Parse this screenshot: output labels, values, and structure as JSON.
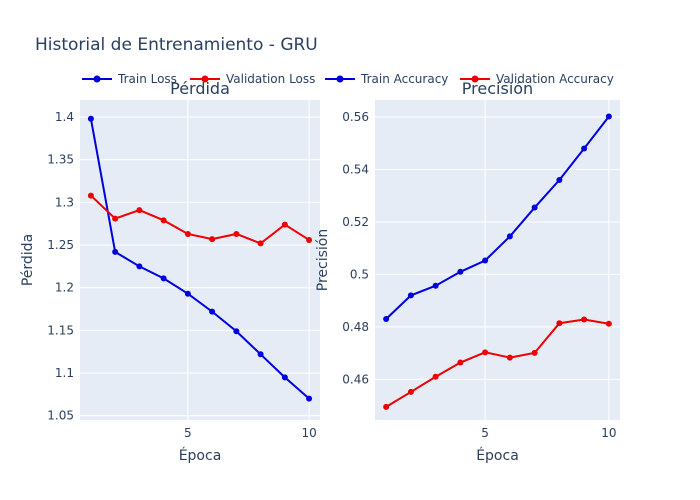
{
  "title": "Historial de Entrenamiento - GRU",
  "legend": [
    "Train Loss",
    "Validation Loss",
    "Train Accuracy",
    "Validation Accuracy"
  ],
  "colors": {
    "train": "#0000dd",
    "validation": "#ee0000",
    "plot_bg": "#e5ecf6",
    "grid": "#ffffff",
    "text": "#2a3f5f"
  },
  "chart_data": [
    {
      "type": "line",
      "title": "Pérdida",
      "xlabel": "Época",
      "ylabel": "Pérdida",
      "x": [
        1,
        2,
        3,
        4,
        5,
        6,
        7,
        8,
        9,
        10
      ],
      "xticks": [
        5,
        10
      ],
      "yticks": [
        1.05,
        1.1,
        1.15,
        1.2,
        1.25,
        1.3,
        1.35,
        1.4
      ],
      "ytick_labels": [
        "1.05",
        "1.1",
        "1.15",
        "1.2",
        "1.25",
        "1.3",
        "1.35",
        "1.4"
      ],
      "xlim": [
        0.55,
        10.45
      ],
      "ylim": [
        1.045,
        1.42
      ],
      "grid": true,
      "series": [
        {
          "name": "Train Loss",
          "color": "#0000dd",
          "values": [
            1.398,
            1.242,
            1.225,
            1.211,
            1.193,
            1.172,
            1.149,
            1.122,
            1.095,
            1.07
          ]
        },
        {
          "name": "Validation Loss",
          "color": "#ee0000",
          "values": [
            1.308,
            1.281,
            1.291,
            1.279,
            1.263,
            1.257,
            1.263,
            1.252,
            1.274,
            1.256
          ]
        }
      ]
    },
    {
      "type": "line",
      "title": "Precisión",
      "xlabel": "Época",
      "ylabel": "Precisión",
      "x": [
        1,
        2,
        3,
        4,
        5,
        6,
        7,
        8,
        9,
        10
      ],
      "xticks": [
        5,
        10
      ],
      "yticks": [
        0.46,
        0.48,
        0.5,
        0.52,
        0.54,
        0.56
      ],
      "ytick_labels": [
        "0.46",
        "0.48",
        "0.5",
        "0.52",
        "0.54",
        "0.56"
      ],
      "xlim": [
        0.55,
        10.45
      ],
      "ylim": [
        0.4445,
        0.5665
      ],
      "grid": true,
      "series": [
        {
          "name": "Train Accuracy",
          "color": "#0000dd",
          "values": [
            0.483,
            0.492,
            0.4957,
            0.501,
            0.5053,
            0.5145,
            0.5255,
            0.536,
            0.548,
            0.5602
          ]
        },
        {
          "name": "Validation Accuracy",
          "color": "#ee0000",
          "values": [
            0.4495,
            0.4552,
            0.461,
            0.4664,
            0.4703,
            0.4683,
            0.4701,
            0.4814,
            0.4828,
            0.4812
          ]
        }
      ]
    }
  ]
}
